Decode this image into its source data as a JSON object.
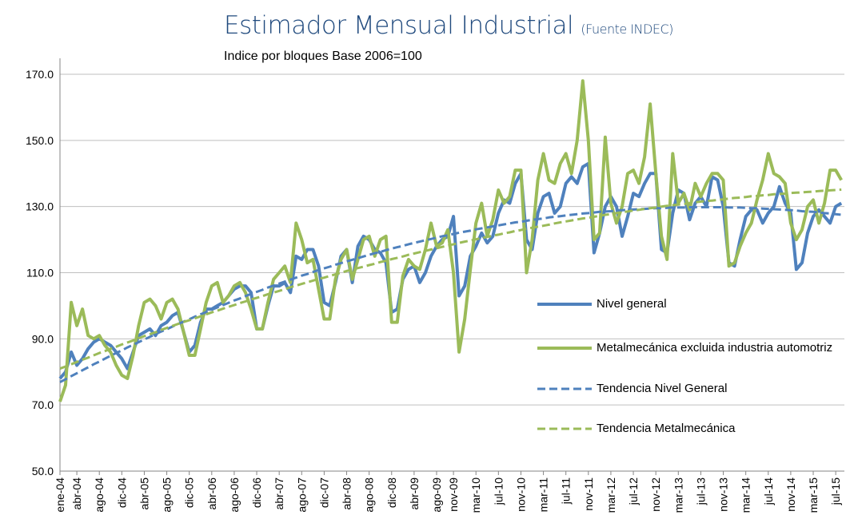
{
  "chart_data": {
    "type": "line",
    "title": "Estimador Mensual Industrial",
    "title_note": "(Fuente INDEC)",
    "subtitle": "Indice por bloques Base 2006=100",
    "categories": [
      "ene-04",
      null,
      null,
      "abr-04",
      null,
      null,
      null,
      "ago-04",
      null,
      null,
      null,
      "dic-04",
      null,
      null,
      null,
      "abr-05",
      null,
      null,
      null,
      "ago-05",
      null,
      null,
      null,
      "dic-05",
      null,
      null,
      null,
      "abr-06",
      null,
      null,
      null,
      "ago-06",
      null,
      null,
      null,
      "dic-06",
      null,
      null,
      null,
      "abr-07",
      null,
      null,
      null,
      "ago-07",
      null,
      null,
      null,
      "dic-07",
      null,
      null,
      null,
      "abr-08",
      null,
      null,
      null,
      "ago-08",
      null,
      null,
      null,
      "dic-08",
      null,
      null,
      null,
      "abr-09",
      null,
      null,
      null,
      "ago-09",
      null,
      null,
      "nov-09",
      null,
      null,
      null,
      "mar-10",
      null,
      null,
      null,
      "jul-10",
      null,
      null,
      null,
      "nov-10",
      null,
      null,
      null,
      "mar-11",
      null,
      null,
      null,
      "jul-11",
      null,
      null,
      null,
      "nov-11",
      null,
      null,
      null,
      "mar-12",
      null,
      null,
      null,
      "jul-12",
      null,
      null,
      null,
      "nov-12",
      null,
      null,
      null,
      "mar-13",
      null,
      null,
      null,
      "jul-13",
      null,
      null,
      null,
      "nov-13",
      null,
      null,
      null,
      "mar-14",
      null,
      null,
      null,
      "jul-14",
      null,
      null,
      null,
      "nov-14",
      null,
      null,
      null,
      "mar-15",
      null,
      null,
      null,
      "jul-15",
      null
    ],
    "series": [
      {
        "name": "Nivel general",
        "color": "#4f81bd",
        "style": "solid",
        "values": [
          78,
          80,
          86,
          82,
          84,
          87,
          89,
          90,
          89,
          88,
          86,
          84,
          81,
          86,
          91,
          92,
          93,
          91,
          94,
          95,
          97,
          98,
          92,
          86,
          88,
          95,
          99,
          99,
          100,
          101,
          103,
          105,
          106,
          106,
          104,
          93,
          93,
          100,
          106,
          106,
          107,
          104,
          115,
          114,
          117,
          117,
          112,
          101,
          100,
          107,
          115,
          117,
          107,
          118,
          121,
          120,
          117,
          116,
          113,
          98,
          99,
          108,
          111,
          112,
          107,
          110,
          115,
          118,
          120,
          121,
          127,
          103,
          106,
          115,
          118,
          122,
          119,
          121,
          128,
          132,
          131,
          137,
          140,
          120,
          117,
          128,
          133,
          134,
          128,
          130,
          137,
          139,
          137,
          142,
          143,
          116,
          122,
          130,
          133,
          130,
          121,
          127,
          134,
          133,
          137,
          140,
          140,
          117,
          116,
          128,
          135,
          134,
          126,
          131,
          133,
          130,
          139,
          138,
          130,
          113,
          112,
          120,
          127,
          129,
          129,
          125,
          128,
          130,
          136,
          131,
          128,
          111,
          113,
          122,
          127,
          129,
          127,
          125,
          130,
          131
        ]
      },
      {
        "name": "Metalmecánica excluida industria automotriz",
        "color": "#9bbb59",
        "style": "solid",
        "values": [
          71,
          76,
          101,
          94,
          99,
          91,
          90,
          91,
          88,
          86,
          82,
          79,
          78,
          85,
          94,
          101,
          102,
          100,
          96,
          101,
          102,
          99,
          92,
          85,
          85,
          93,
          101,
          106,
          107,
          101,
          103,
          106,
          107,
          104,
          99,
          93,
          93,
          101,
          108,
          110,
          112,
          107,
          125,
          120,
          113,
          114,
          105,
          96,
          96,
          108,
          114,
          117,
          108,
          114,
          120,
          121,
          115,
          120,
          121,
          95,
          95,
          109,
          114,
          112,
          111,
          117,
          125,
          118,
          119,
          123,
          110,
          86,
          96,
          111,
          125,
          131,
          121,
          126,
          135,
          131,
          133,
          141,
          141,
          110,
          120,
          138,
          146,
          138,
          137,
          143,
          146,
          140,
          150,
          168,
          150,
          120,
          122,
          151,
          131,
          125,
          130,
          140,
          141,
          137,
          145,
          161,
          140,
          121,
          114,
          146,
          131,
          134,
          129,
          137,
          133,
          137,
          140,
          140,
          138,
          112,
          113,
          118,
          122,
          125,
          132,
          138,
          146,
          140,
          139,
          137,
          125,
          120,
          123,
          130,
          132,
          125,
          131,
          141,
          141,
          138
        ]
      },
      {
        "name": "Tendencia Nivel General",
        "color": "#4f81bd",
        "style": "dashed",
        "values": [
          76.9,
          77.8,
          78.7,
          79.6,
          80.5,
          81.4,
          82.3,
          83.1,
          84.0,
          84.9,
          85.7,
          86.5,
          87.4,
          88.2,
          89.0,
          89.8,
          90.6,
          91.4,
          92.2,
          92.9,
          93.7,
          94.5,
          95.2,
          95.9,
          96.7,
          97.4,
          98.1,
          98.8,
          99.5,
          100.2,
          100.9,
          101.6,
          102.2,
          102.9,
          103.6,
          104.2,
          104.8,
          105.5,
          106.1,
          106.7,
          107.3,
          107.9,
          108.5,
          109.1,
          109.6,
          110.2,
          110.8,
          111.3,
          111.8,
          112.4,
          112.9,
          113.4,
          113.9,
          114.4,
          114.9,
          115.4,
          115.9,
          116.3,
          116.8,
          117.3,
          117.7,
          118.1,
          118.6,
          119.0,
          119.4,
          119.8,
          120.2,
          120.6,
          121.0,
          121.3,
          121.7,
          122.1,
          122.4,
          122.7,
          123.1,
          123.4,
          123.7,
          124.0,
          124.3,
          124.6,
          124.9,
          125.2,
          125.4,
          125.7,
          126.0,
          126.2,
          126.4,
          126.7,
          126.9,
          127.1,
          127.3,
          127.5,
          127.7,
          127.9,
          128.0,
          128.2,
          128.4,
          128.5,
          128.6,
          128.8,
          128.9,
          129.0,
          129.1,
          129.2,
          129.3,
          129.4,
          129.5,
          129.5,
          129.6,
          129.7,
          129.7,
          129.7,
          129.8,
          129.8,
          129.8,
          129.8,
          129.8,
          129.8,
          129.8,
          129.7,
          129.7,
          129.7,
          129.6,
          129.5,
          129.5,
          129.4,
          129.3,
          129.2,
          129.1,
          129.0,
          128.9,
          128.8,
          128.6,
          128.5,
          128.4,
          128.2,
          128.0,
          127.9,
          127.7,
          127.5
        ]
      },
      {
        "name": "Tendencia Metalmecánica",
        "color": "#9bbb59",
        "style": "dashed",
        "values": [
          81.0,
          81.6,
          82.3,
          83.0,
          83.7,
          84.3,
          85.0,
          85.7,
          86.3,
          87.0,
          87.6,
          88.3,
          88.9,
          89.5,
          90.2,
          90.8,
          91.4,
          92.0,
          92.7,
          93.3,
          93.9,
          94.5,
          95.1,
          95.6,
          96.2,
          96.8,
          97.4,
          98.0,
          98.5,
          99.1,
          99.7,
          100.2,
          100.8,
          101.3,
          101.9,
          102.4,
          102.9,
          103.5,
          104.0,
          104.5,
          105.0,
          105.6,
          106.1,
          106.6,
          107.1,
          107.6,
          108.1,
          108.5,
          109.0,
          109.5,
          110.0,
          110.5,
          110.9,
          111.4,
          111.8,
          112.3,
          112.7,
          113.2,
          113.6,
          114.1,
          114.5,
          114.9,
          115.4,
          115.8,
          116.2,
          116.6,
          117.0,
          117.4,
          117.8,
          118.2,
          118.6,
          119.0,
          119.4,
          119.7,
          120.1,
          120.5,
          120.8,
          121.2,
          121.5,
          121.9,
          122.2,
          122.6,
          122.9,
          123.3,
          123.6,
          123.9,
          124.2,
          124.5,
          124.9,
          125.2,
          125.5,
          125.8,
          126.1,
          126.4,
          126.6,
          126.9,
          127.2,
          127.5,
          127.7,
          128.0,
          128.3,
          128.5,
          128.8,
          129.0,
          129.3,
          129.5,
          129.7,
          130.0,
          130.2,
          130.4,
          130.6,
          130.8,
          131.0,
          131.3,
          131.5,
          131.7,
          131.8,
          132.0,
          132.2,
          132.4,
          132.6,
          132.7,
          132.9,
          133.1,
          133.2,
          133.4,
          133.5,
          133.7,
          133.8,
          133.9,
          134.1,
          134.2,
          134.3,
          134.4,
          134.5,
          134.7,
          134.8,
          134.9,
          135.0,
          135.1
        ]
      }
    ],
    "ylim": [
      50,
      170
    ],
    "yticks": [
      {
        "value": 50,
        "label": "50.0"
      },
      {
        "value": 70,
        "label": "70.0"
      },
      {
        "value": 90,
        "label": "90.0"
      },
      {
        "value": 110,
        "label": "110.0"
      },
      {
        "value": 130,
        "label": "130.0"
      },
      {
        "value": 150,
        "label": "150.0"
      },
      {
        "value": 170,
        "label": "170.0"
      }
    ],
    "grid": true,
    "legend": "right"
  }
}
